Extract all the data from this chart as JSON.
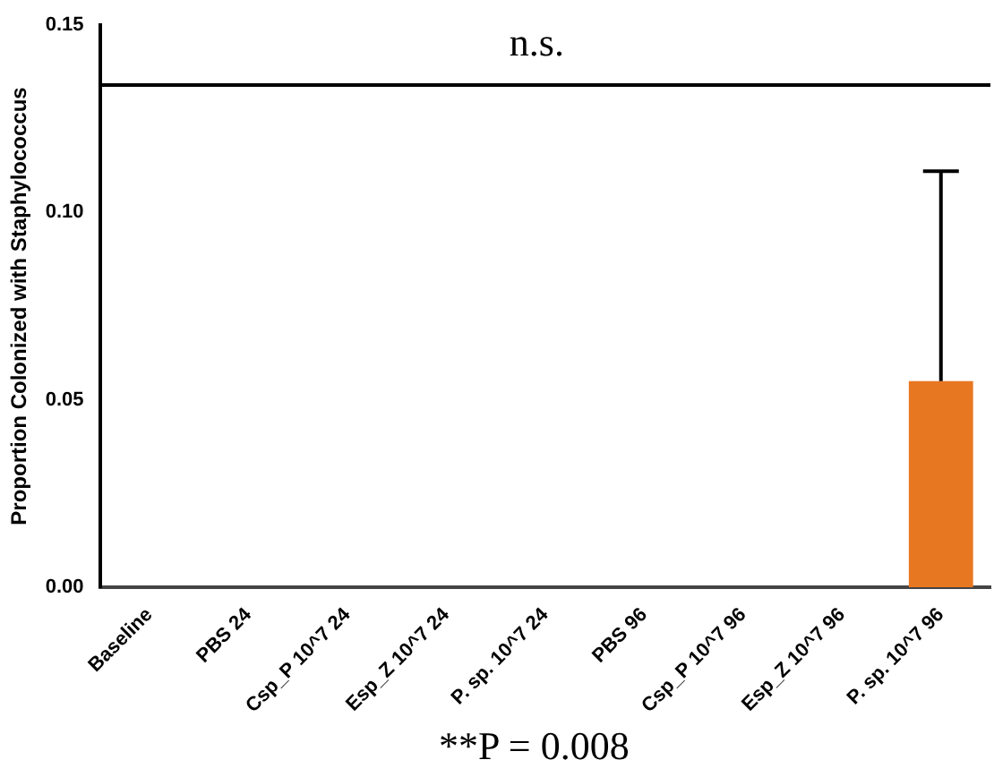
{
  "chart_data": {
    "type": "bar",
    "ylabel": "Proportion Colonized with Staphylococcus",
    "categories": [
      "Baseline",
      "PBS 24",
      "Csp_P 10^7 24",
      "Esp_Z 10^7 24",
      "P. sp. 10^7 24",
      "PBS 96",
      "Csp_P 10^7 96",
      "Esp_Z 10^7 96",
      "P. sp. 10^7 96"
    ],
    "values": [
      0,
      0,
      0,
      0,
      0,
      0,
      0,
      0,
      0.055
    ],
    "errors": [
      null,
      null,
      null,
      null,
      null,
      null,
      null,
      null,
      [
        0.055,
        0.111
      ]
    ],
    "color": "#e87722",
    "ylim": [
      0,
      0.15
    ],
    "yticks": [
      {
        "value": 0,
        "label": "0.00"
      },
      {
        "value": 0.05,
        "label": "0.05"
      },
      {
        "value": 0.1,
        "label": "0.10"
      },
      {
        "value": 0.15,
        "label": "0.15"
      }
    ],
    "grid": false,
    "legend": false,
    "ref_lines": [
      {
        "axis": "y",
        "value": 0.134,
        "label": "n.s.",
        "color": "#000000"
      }
    ],
    "annotations": [
      "**P = 0.008"
    ]
  }
}
